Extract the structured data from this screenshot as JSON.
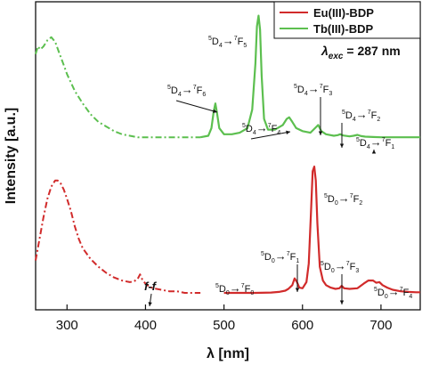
{
  "chart_data": {
    "type": "line",
    "xlabel": "λ [nm]",
    "ylabel": "Intensity [a.u.]",
    "xlim": [
      260,
      750
    ],
    "ylim": [
      0,
      1
    ],
    "x_ticks": [
      300,
      400,
      500,
      600,
      700
    ],
    "y_ticks_visible": false,
    "grid": false,
    "legend_position": "top-right",
    "excitation_label": {
      "symbol": "λ",
      "sub": "exc",
      "rest": " = 287 nm"
    },
    "series": [
      {
        "name": "Eu(III)-BDP",
        "color": "#d12b2b",
        "excitation": {
          "x": [
            260,
            265,
            270,
            275,
            280,
            285,
            288,
            292,
            296,
            300,
            305,
            310,
            315,
            320,
            330,
            340,
            350,
            360,
            370,
            380,
            385,
            390,
            393,
            396,
            400,
            405,
            410,
            420,
            430,
            440,
            450,
            460,
            470
          ],
          "y": [
            0.16,
            0.23,
            0.3,
            0.36,
            0.4,
            0.42,
            0.42,
            0.41,
            0.39,
            0.36,
            0.32,
            0.27,
            0.23,
            0.2,
            0.165,
            0.14,
            0.12,
            0.105,
            0.095,
            0.09,
            0.092,
            0.1,
            0.115,
            0.098,
            0.085,
            0.075,
            0.07,
            0.065,
            0.06,
            0.06,
            0.055,
            0.055,
            0.055
          ]
        },
        "emission": {
          "x": [
            500,
            520,
            540,
            560,
            570,
            578,
            582,
            587,
            590,
            593,
            596,
            600,
            605,
            608,
            611,
            613,
            615,
            617,
            619,
            622,
            626,
            630,
            636,
            642,
            647,
            650,
            653,
            660,
            670,
            678,
            684,
            690,
            694,
            698,
            702,
            708,
            715,
            725,
            735,
            745,
            750
          ],
          "y": [
            0.055,
            0.055,
            0.055,
            0.056,
            0.058,
            0.062,
            0.068,
            0.08,
            0.102,
            0.09,
            0.072,
            0.07,
            0.09,
            0.15,
            0.33,
            0.45,
            0.465,
            0.42,
            0.28,
            0.14,
            0.095,
            0.08,
            0.072,
            0.068,
            0.07,
            0.078,
            0.07,
            0.068,
            0.07,
            0.085,
            0.095,
            0.095,
            0.088,
            0.09,
            0.08,
            0.072,
            0.065,
            0.06,
            0.058,
            0.057,
            0.057
          ]
        }
      },
      {
        "name": "Tb(III)-BDP",
        "color": "#5cbf4f",
        "excitation": {
          "x": [
            260,
            263,
            266,
            270,
            275,
            280,
            285,
            290,
            295,
            300,
            310,
            320,
            330,
            340,
            350,
            360,
            370,
            380,
            390,
            400,
            420,
            440,
            460,
            470
          ],
          "y": [
            0.83,
            0.855,
            0.845,
            0.855,
            0.875,
            0.885,
            0.87,
            0.835,
            0.8,
            0.765,
            0.71,
            0.67,
            0.635,
            0.61,
            0.595,
            0.58,
            0.57,
            0.565,
            0.56,
            0.56,
            0.56,
            0.56,
            0.56,
            0.56
          ]
        },
        "emission": {
          "x": [
            470,
            480,
            484,
            487,
            489,
            491,
            494,
            500,
            510,
            520,
            530,
            536,
            540,
            542,
            544,
            546,
            548,
            551,
            556,
            565,
            575,
            580,
            583,
            587,
            592,
            600,
            610,
            616,
            620,
            624,
            630,
            640,
            645,
            648,
            652,
            660,
            665,
            670,
            675,
            680,
            690,
            700,
            720,
            750
          ],
          "y": [
            0.56,
            0.565,
            0.59,
            0.645,
            0.67,
            0.64,
            0.59,
            0.57,
            0.57,
            0.575,
            0.59,
            0.65,
            0.8,
            0.92,
            0.955,
            0.91,
            0.76,
            0.62,
            0.585,
            0.585,
            0.6,
            0.62,
            0.625,
            0.61,
            0.59,
            0.58,
            0.575,
            0.59,
            0.6,
            0.58,
            0.57,
            0.565,
            0.567,
            0.57,
            0.566,
            0.563,
            0.565,
            0.568,
            0.564,
            0.562,
            0.561,
            0.56,
            0.56,
            0.56
          ]
        }
      }
    ],
    "annotations": [
      {
        "id": "tb-7f6",
        "series": "Tb(III)-BDP",
        "parts": [
          {
            "t": "5",
            "sup": true
          },
          {
            "t": "D"
          },
          {
            "t": "4",
            "sub": true
          },
          {
            "t": "→"
          },
          {
            "t": "7",
            "sup": true
          },
          {
            "t": "F"
          },
          {
            "t": "6",
            "sub": true
          }
        ]
      },
      {
        "id": "tb-7f5",
        "series": "Tb(III)-BDP",
        "parts": [
          {
            "t": "5",
            "sup": true
          },
          {
            "t": "D"
          },
          {
            "t": "4",
            "sub": true
          },
          {
            "t": "→"
          },
          {
            "t": "7",
            "sup": true
          },
          {
            "t": "F"
          },
          {
            "t": "5",
            "sub": true
          }
        ]
      },
      {
        "id": "tb-7f4",
        "series": "Tb(III)-BDP",
        "parts": [
          {
            "t": "5",
            "sup": true
          },
          {
            "t": "D"
          },
          {
            "t": "4",
            "sub": true
          },
          {
            "t": "→"
          },
          {
            "t": "7",
            "sup": true
          },
          {
            "t": "F"
          },
          {
            "t": "4",
            "sub": true
          }
        ]
      },
      {
        "id": "tb-7f3",
        "series": "Tb(III)-BDP",
        "parts": [
          {
            "t": "5",
            "sup": true
          },
          {
            "t": "D"
          },
          {
            "t": "4",
            "sub": true
          },
          {
            "t": "→"
          },
          {
            "t": "7",
            "sup": true
          },
          {
            "t": "F"
          },
          {
            "t": "3",
            "sub": true
          }
        ]
      },
      {
        "id": "tb-7f2",
        "series": "Tb(III)-BDP",
        "parts": [
          {
            "t": "5",
            "sup": true
          },
          {
            "t": "D"
          },
          {
            "t": "4",
            "sub": true
          },
          {
            "t": "→"
          },
          {
            "t": "7",
            "sup": true
          },
          {
            "t": "F"
          },
          {
            "t": "2",
            "sub": true
          }
        ]
      },
      {
        "id": "tb-7f1",
        "series": "Tb(III)-BDP",
        "parts": [
          {
            "t": "5",
            "sup": true
          },
          {
            "t": "D"
          },
          {
            "t": "4",
            "sub": true
          },
          {
            "t": "→"
          },
          {
            "t": "7",
            "sup": true
          },
          {
            "t": "F"
          },
          {
            "t": "1",
            "sub": true
          }
        ]
      },
      {
        "id": "eu-7f2",
        "series": "Eu(III)-BDP",
        "parts": [
          {
            "t": "5",
            "sup": true
          },
          {
            "t": "D"
          },
          {
            "t": "0",
            "sub": true
          },
          {
            "t": "→"
          },
          {
            "t": "7",
            "sup": true
          },
          {
            "t": "F"
          },
          {
            "t": "2",
            "sub": true
          }
        ]
      },
      {
        "id": "eu-7f1",
        "series": "Eu(III)-BDP",
        "parts": [
          {
            "t": "5",
            "sup": true
          },
          {
            "t": "D"
          },
          {
            "t": "0",
            "sub": true
          },
          {
            "t": "→"
          },
          {
            "t": "7",
            "sup": true
          },
          {
            "t": "F"
          },
          {
            "t": "1",
            "sub": true
          }
        ]
      },
      {
        "id": "eu-7f0",
        "series": "Eu(III)-BDP",
        "parts": [
          {
            "t": "5",
            "sup": true
          },
          {
            "t": "D"
          },
          {
            "t": "0",
            "sub": true
          },
          {
            "t": "→"
          },
          {
            "t": "7",
            "sup": true
          },
          {
            "t": "F"
          },
          {
            "t": "0",
            "sub": true
          }
        ]
      },
      {
        "id": "eu-7f3",
        "series": "Eu(III)-BDP",
        "parts": [
          {
            "t": "5",
            "sup": true
          },
          {
            "t": "D"
          },
          {
            "t": "0",
            "sub": true
          },
          {
            "t": "→"
          },
          {
            "t": "7",
            "sup": true
          },
          {
            "t": "F"
          },
          {
            "t": "3",
            "sub": true
          }
        ]
      },
      {
        "id": "eu-7f4",
        "series": "Eu(III)-BDP",
        "parts": [
          {
            "t": "5",
            "sup": true
          },
          {
            "t": "D"
          },
          {
            "t": "0",
            "sub": true
          },
          {
            "t": "→"
          },
          {
            "t": "7",
            "sup": true
          },
          {
            "t": "F"
          },
          {
            "t": "4",
            "sub": true
          }
        ]
      },
      {
        "id": "eu-ff",
        "series": "Eu(III)-BDP",
        "parts": [
          {
            "t": "f-f",
            "italic": true
          }
        ]
      }
    ]
  }
}
